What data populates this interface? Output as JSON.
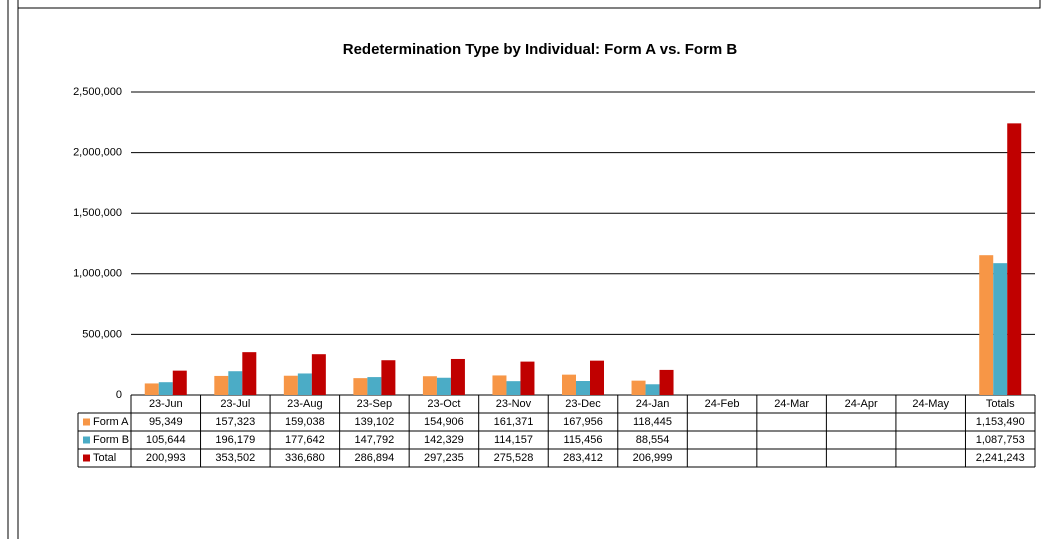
{
  "chart_data": {
    "type": "bar",
    "title": "Redetermination Type by Individual: Form A vs. Form B",
    "categories": [
      "23-Jun",
      "23-Jul",
      "23-Aug",
      "23-Sep",
      "23-Oct",
      "23-Nov",
      "23-Dec",
      "24-Jan",
      "24-Feb",
      "24-Mar",
      "24-Apr",
      "24-May",
      "Totals"
    ],
    "series": [
      {
        "name": "Form A",
        "color": "#f79646",
        "values": [
          95349,
          157323,
          159038,
          139102,
          154906,
          161371,
          167956,
          118445,
          null,
          null,
          null,
          null,
          1153490
        ],
        "value_labels": [
          "95,349",
          "157,323",
          "159,038",
          "139,102",
          "154,906",
          "161,371",
          "167,956",
          "118,445",
          null,
          null,
          null,
          null,
          "1,153,490"
        ]
      },
      {
        "name": "Form B",
        "color": "#4bacc6",
        "values": [
          105644,
          196179,
          177642,
          147792,
          142329,
          114157,
          115456,
          88554,
          null,
          null,
          null,
          null,
          1087753
        ],
        "value_labels": [
          "105,644",
          "196,179",
          "177,642",
          "147,792",
          "142,329",
          "114,157",
          "115,456",
          "88,554",
          null,
          null,
          null,
          null,
          "1,087,753"
        ]
      },
      {
        "name": "Total",
        "color": "#c00000",
        "values": [
          200993,
          353502,
          336680,
          286894,
          297235,
          275528,
          283412,
          206999,
          null,
          null,
          null,
          null,
          2241243
        ],
        "value_labels": [
          "200,993",
          "353,502",
          "336,680",
          "286,894",
          "297,235",
          "275,528",
          "283,412",
          "206,999",
          null,
          null,
          null,
          null,
          "2,241,243"
        ]
      }
    ],
    "ylim": [
      0,
      2500000
    ],
    "yticks": [
      0,
      {
        "value": 500000,
        "label": "500,000"
      },
      {
        "value": 1000000,
        "label": "1,000,000"
      },
      {
        "value": 1500000,
        "label": "1,500,000"
      },
      {
        "value": 2000000,
        "label": "2,000,000"
      },
      {
        "value": 2500000,
        "label": "2,500,000"
      }
    ],
    "grid": true
  }
}
